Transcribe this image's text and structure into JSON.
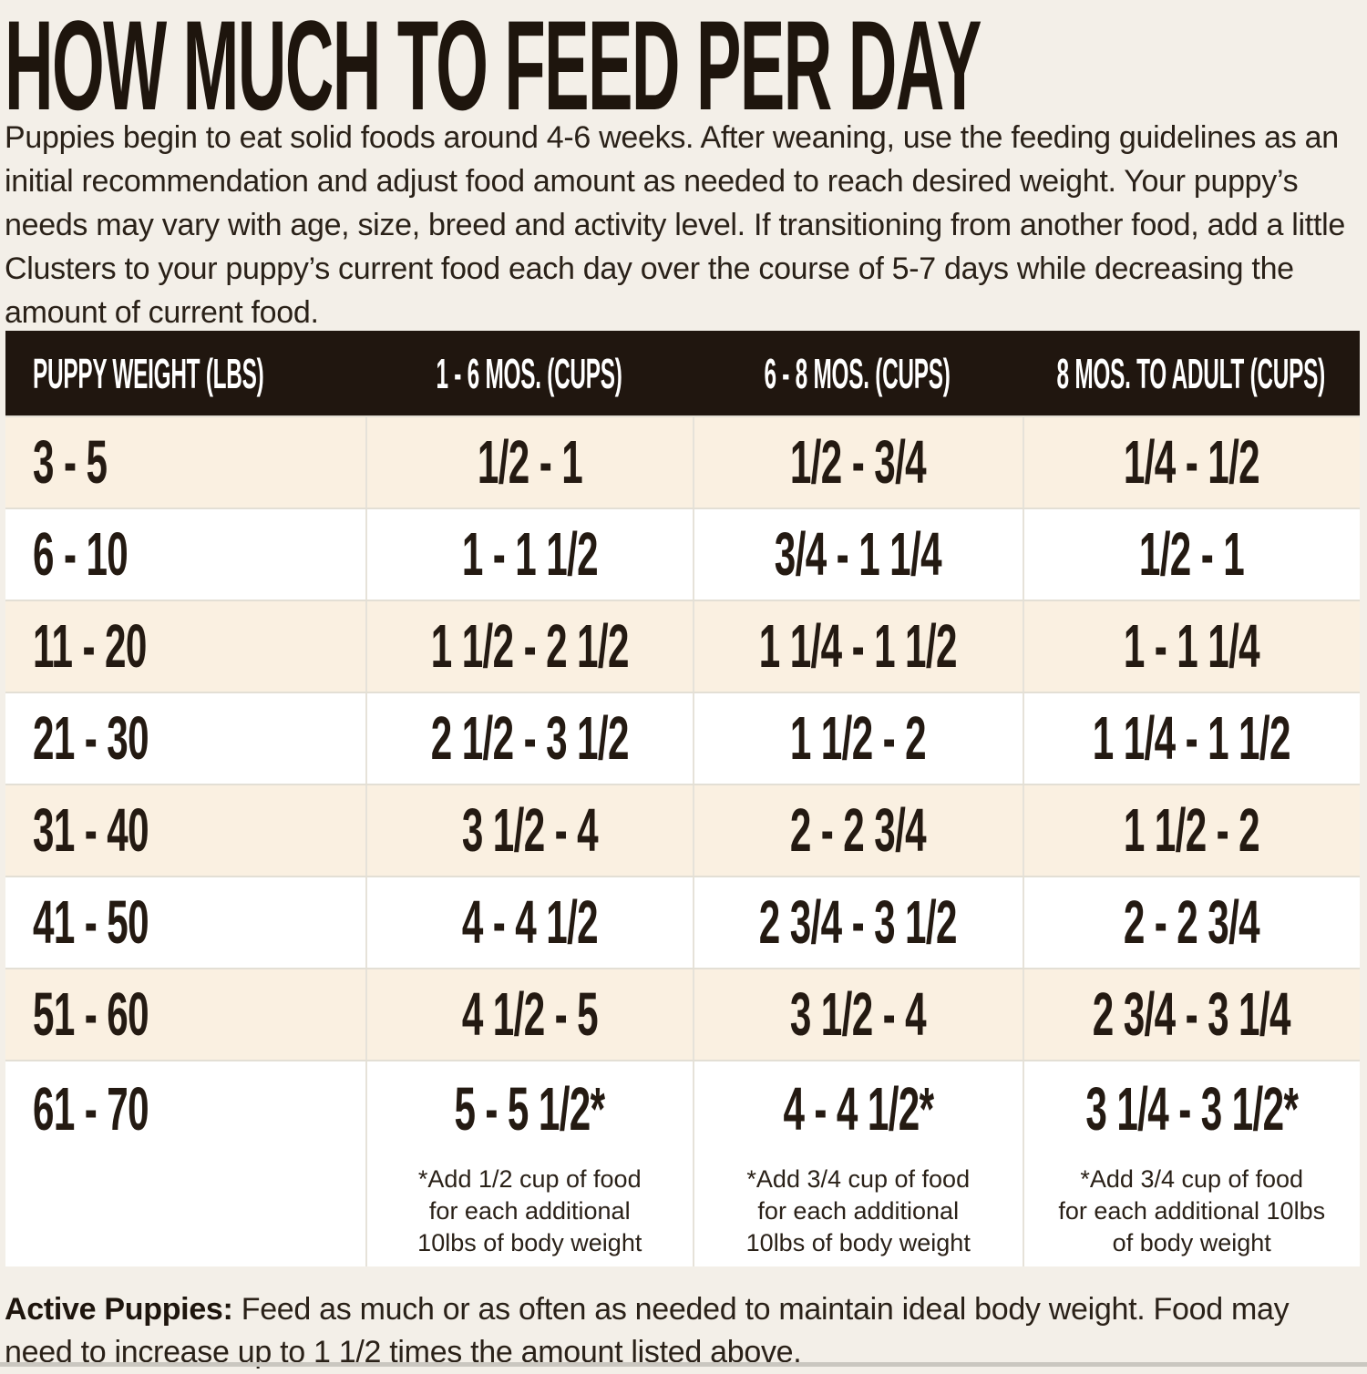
{
  "page": {
    "title": "HOW MUCH TO FEED PER DAY",
    "intro": "Puppies begin to eat solid foods around 4-6 weeks. After weaning, use the feeding guidelines as an initial recommendation and adjust food amount as needed to reach desired weight. Your puppy’s needs may vary with age, size, breed and activity level. If transitioning from another food, add a little Clusters to your puppy’s current food each day over the course of 5-7 days while decreasing the amount of current food.",
    "active_note": {
      "label": "Active Puppies:",
      "text": " Feed as much or as often as needed to maintain ideal body weight. Food may need to increase up to 1 1/2 times the amount listed above."
    }
  },
  "table": {
    "headers": {
      "weight": "PUPPY WEIGHT (LBS)",
      "m1_6": "1 - 6 MOS. (CUPS)",
      "m6_8": "6 - 8 MOS. (CUPS)",
      "m8_adult": "8 MOS. TO ADULT (CUPS)"
    },
    "rows": [
      {
        "weight": "3 - 5",
        "m1_6": "1/2 - 1",
        "m6_8": "1/2 - 3/4",
        "m8_adult": "1/4 - 1/2"
      },
      {
        "weight": "6 - 10",
        "m1_6": "1 - 1 1/2",
        "m6_8": "3/4 - 1 1/4",
        "m8_adult": "1/2 - 1"
      },
      {
        "weight": "11 - 20",
        "m1_6": "1 1/2 - 2 1/2",
        "m6_8": "1 1/4 - 1 1/2",
        "m8_adult": "1 - 1 1/4"
      },
      {
        "weight": "21 - 30",
        "m1_6": "2 1/2 - 3 1/2",
        "m6_8": "1 1/2 - 2",
        "m8_adult": "1 1/4 - 1 1/2"
      },
      {
        "weight": "31 - 40",
        "m1_6": "3 1/2 - 4",
        "m6_8": "2 - 2 3/4",
        "m8_adult": "1 1/2 - 2"
      },
      {
        "weight": "41 - 50",
        "m1_6": "4 - 4 1/2",
        "m6_8": "2 3/4 - 3 1/2",
        "m8_adult": "2 - 2 3/4"
      },
      {
        "weight": "51 - 60",
        "m1_6": "4 1/2 - 5",
        "m6_8": "3 1/2 - 4",
        "m8_adult": "2 3/4 - 3 1/4"
      },
      {
        "weight": "61 - 70",
        "m1_6": "5 - 5 1/2*",
        "m6_8": "4 - 4 1/2*",
        "m8_adult": "3 1/4 - 3 1/2*"
      }
    ],
    "footnotes": {
      "m1_6": [
        "*Add 1/2 cup of food",
        "for each additional",
        "10lbs of body weight"
      ],
      "m6_8": [
        "*Add 3/4 cup of food",
        "for each additional",
        "10lbs of body weight"
      ],
      "m8_adult": [
        "*Add 3/4 cup of food",
        "for each additional 10lbs",
        "of body weight"
      ]
    }
  },
  "colors": {
    "page_bg": "#f3efe8",
    "row_cream": "#faf0e1",
    "row_white": "#ffffff",
    "header_bg": "#20160f",
    "header_text": "#ffffff",
    "text_dark": "#241a12"
  }
}
